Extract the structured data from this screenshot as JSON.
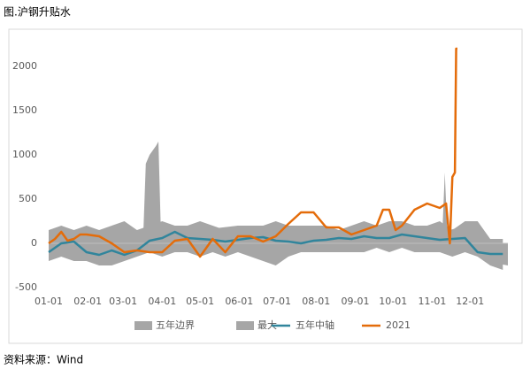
{
  "chart_data": {
    "type": "line",
    "title": "图.沪钢升贴水",
    "source": "资料来源：Wind",
    "xlim": [
      0,
      364
    ],
    "ylim": [
      -500,
      2300
    ],
    "xticks": [
      {
        "value": 0,
        "label": "01-01"
      },
      {
        "value": 31,
        "label": "02-01"
      },
      {
        "value": 59,
        "label": "03-01"
      },
      {
        "value": 90,
        "label": "04-01"
      },
      {
        "value": 120,
        "label": "05-01"
      },
      {
        "value": 151,
        "label": "06-01"
      },
      {
        "value": 181,
        "label": "07-01"
      },
      {
        "value": 212,
        "label": "08-01"
      },
      {
        "value": 243,
        "label": "09-01"
      },
      {
        "value": 273,
        "label": "10-01"
      },
      {
        "value": 304,
        "label": "11-01"
      },
      {
        "value": 334,
        "label": "12-01"
      }
    ],
    "yticks": [
      -500,
      0,
      500,
      1000,
      1500,
      2000
    ],
    "legend": "bottom",
    "series": [
      {
        "name": "五年边界",
        "kind": "band",
        "color": "#a6a6a6",
        "x": [
          0,
          10,
          20,
          30,
          40,
          50,
          60,
          70,
          80,
          90,
          100,
          110,
          120,
          130,
          140,
          150,
          160,
          170,
          180,
          190,
          200,
          210,
          220,
          230,
          240,
          250,
          260,
          270,
          280,
          290,
          300,
          310,
          320,
          330,
          340,
          350,
          360
        ],
        "upper": [
          150,
          200,
          150,
          200,
          150,
          200,
          250,
          150,
          200,
          250,
          200,
          200,
          250,
          200,
          150,
          200,
          200,
          200,
          250,
          200,
          200,
          200,
          200,
          150,
          200,
          250,
          200,
          250,
          250,
          200,
          200,
          250,
          150,
          250,
          250,
          50,
          50
        ],
        "lower": [
          -200,
          -150,
          -200,
          -200,
          -250,
          -250,
          -200,
          -150,
          -100,
          -150,
          -100,
          -100,
          -150,
          -100,
          -150,
          -100,
          -150,
          -200,
          -250,
          -150,
          -100,
          -100,
          -100,
          -100,
          -100,
          -100,
          -50,
          -100,
          -50,
          -100,
          -100,
          -100,
          -150,
          -100,
          -150,
          -250,
          -300
        ]
      },
      {
        "name": "最大",
        "kind": "area",
        "color": "#a6a6a6",
        "x": [
          0,
          20,
          40,
          60,
          75,
          77,
          80,
          85,
          87,
          89,
          95,
          120,
          150,
          180,
          210,
          240,
          270,
          300,
          312,
          314,
          316,
          318,
          330,
          345,
          364
        ],
        "values": [
          100,
          150,
          -150,
          150,
          100,
          900,
          1000,
          1100,
          1150,
          100,
          150,
          150,
          200,
          150,
          100,
          100,
          150,
          150,
          100,
          800,
          100,
          150,
          200,
          -200,
          -250
        ]
      },
      {
        "name": "五年中轴",
        "kind": "line",
        "color": "#31859c",
        "x": [
          0,
          10,
          20,
          30,
          40,
          50,
          60,
          70,
          80,
          90,
          100,
          110,
          120,
          130,
          140,
          150,
          160,
          170,
          180,
          190,
          200,
          210,
          220,
          230,
          240,
          250,
          260,
          270,
          280,
          290,
          300,
          310,
          320,
          330,
          340,
          350,
          360
        ],
        "values": [
          -100,
          0,
          20,
          -100,
          -130,
          -80,
          -130,
          -80,
          30,
          60,
          130,
          60,
          50,
          40,
          20,
          40,
          60,
          70,
          30,
          20,
          0,
          30,
          40,
          60,
          50,
          80,
          60,
          60,
          100,
          80,
          60,
          40,
          50,
          60,
          -100,
          -120,
          -120
        ]
      },
      {
        "name": "2021",
        "kind": "line",
        "color": "#e46c0a",
        "x": [
          0,
          5,
          10,
          15,
          20,
          25,
          30,
          40,
          50,
          60,
          70,
          80,
          90,
          100,
          110,
          120,
          130,
          140,
          150,
          160,
          170,
          180,
          190,
          200,
          210,
          220,
          230,
          240,
          250,
          260,
          265,
          270,
          275,
          280,
          290,
          300,
          310,
          315,
          318,
          320,
          322,
          323,
          324
        ],
        "values": [
          0,
          50,
          130,
          30,
          50,
          100,
          100,
          80,
          0,
          -100,
          -80,
          -100,
          -100,
          30,
          50,
          -150,
          50,
          -100,
          80,
          80,
          20,
          80,
          220,
          350,
          350,
          180,
          180,
          100,
          150,
          200,
          380,
          380,
          150,
          200,
          380,
          450,
          400,
          450,
          0,
          750,
          800,
          2200,
          2200
        ]
      }
    ]
  }
}
